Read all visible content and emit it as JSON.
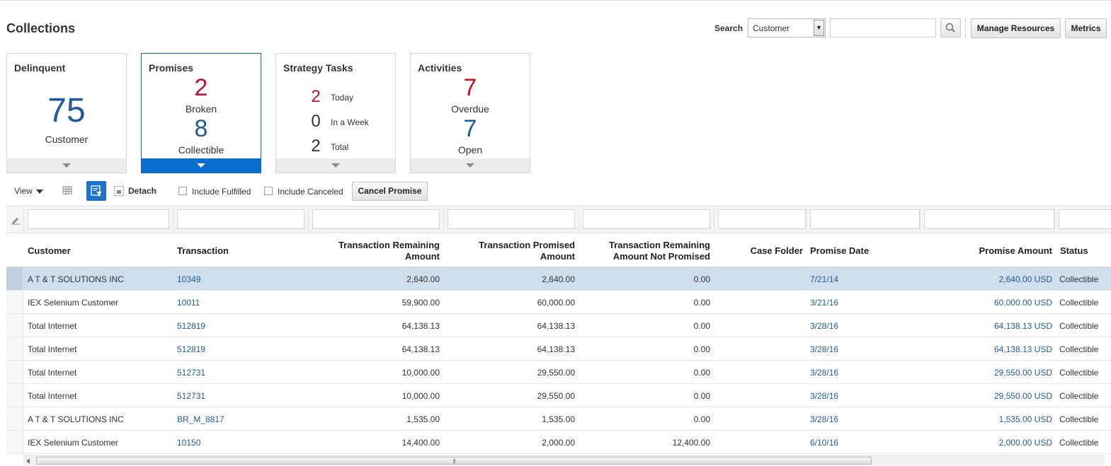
{
  "page": {
    "title": "Collections"
  },
  "search": {
    "label": "Search",
    "scope_value": "Customer",
    "input_value": ""
  },
  "buttons": {
    "manage_resources": "Manage Resources",
    "metrics": "Metrics",
    "cancel_promise": "Cancel Promise"
  },
  "tiles": {
    "delinquent": {
      "title": "Delinquent",
      "count": "75",
      "label": "Customer"
    },
    "promises": {
      "title": "Promises",
      "broken_count": "2",
      "broken_label": "Broken",
      "collectible_count": "8",
      "collectible_label": "Collectible"
    },
    "strategy": {
      "title": "Strategy Tasks",
      "today_count": "2",
      "today_label": "Today",
      "week_count": "0",
      "week_label": "In a Week",
      "total_count": "2",
      "total_label": "Total"
    },
    "activities": {
      "title": "Activities",
      "overdue_count": "7",
      "overdue_label": "Overdue",
      "open_count": "7",
      "open_label": "Open"
    }
  },
  "toolbar": {
    "view_label": "View",
    "detach_label": "Detach",
    "include_fulfilled": "Include Fulfilled",
    "include_canceled": "Include Canceled"
  },
  "table": {
    "headers": {
      "customer": "Customer",
      "transaction": "Transaction",
      "remaining_1": "Transaction Remaining",
      "remaining_2": "Amount",
      "promised_1": "Transaction Promised",
      "promised_2": "Amount",
      "not_promised_1": "Transaction Remaining",
      "not_promised_2": "Amount Not Promised",
      "case_folder": "Case Folder",
      "promise_date": "Promise Date",
      "promise_amount": "Promise Amount",
      "status": "Status"
    },
    "rows": [
      {
        "customer": "A T & T SOLUTIONS INC",
        "transaction": "10349",
        "remaining": "2,640.00",
        "promised": "2,640.00",
        "not_promised": "0.00",
        "case_folder": "",
        "promise_date": "7/21/14",
        "promise_amount": "2,640.00 USD",
        "status": "Collectible"
      },
      {
        "customer": "IEX Selenium Customer",
        "transaction": "10011",
        "remaining": "59,900.00",
        "promised": "60,000.00",
        "not_promised": "0.00",
        "case_folder": "",
        "promise_date": "3/21/16",
        "promise_amount": "60,000.00 USD",
        "status": "Collectible"
      },
      {
        "customer": "Total Internet",
        "transaction": "512819",
        "remaining": "64,138.13",
        "promised": "64,138.13",
        "not_promised": "0.00",
        "case_folder": "",
        "promise_date": "3/28/16",
        "promise_amount": "64,138.13 USD",
        "status": "Collectible"
      },
      {
        "customer": "Total Internet",
        "transaction": "512819",
        "remaining": "64,138.13",
        "promised": "64,138.13",
        "not_promised": "0.00",
        "case_folder": "",
        "promise_date": "3/28/16",
        "promise_amount": "64,138.13 USD",
        "status": "Collectible"
      },
      {
        "customer": "Total Internet",
        "transaction": "512731",
        "remaining": "10,000.00",
        "promised": "29,550.00",
        "not_promised": "0.00",
        "case_folder": "",
        "promise_date": "3/28/16",
        "promise_amount": "29,550.00 USD",
        "status": "Collectible"
      },
      {
        "customer": "Total Internet",
        "transaction": "512731",
        "remaining": "10,000.00",
        "promised": "29,550.00",
        "not_promised": "0.00",
        "case_folder": "",
        "promise_date": "3/28/16",
        "promise_amount": "29,550.00 USD",
        "status": "Collectible"
      },
      {
        "customer": "A T & T SOLUTIONS INC",
        "transaction": "BR_M_8817",
        "remaining": "1,535.00",
        "promised": "1,535.00",
        "not_promised": "0.00",
        "case_folder": "",
        "promise_date": "3/28/16",
        "promise_amount": "1,535.00 USD",
        "status": "Collectible"
      },
      {
        "customer": "IEX Selenium Customer",
        "transaction": "10150",
        "remaining": "14,400.00",
        "promised": "2,000.00",
        "not_promised": "12,400.00",
        "case_folder": "",
        "promise_date": "6/10/16",
        "promise_amount": "2,000.00 USD",
        "status": "Collectible"
      }
    ]
  }
}
